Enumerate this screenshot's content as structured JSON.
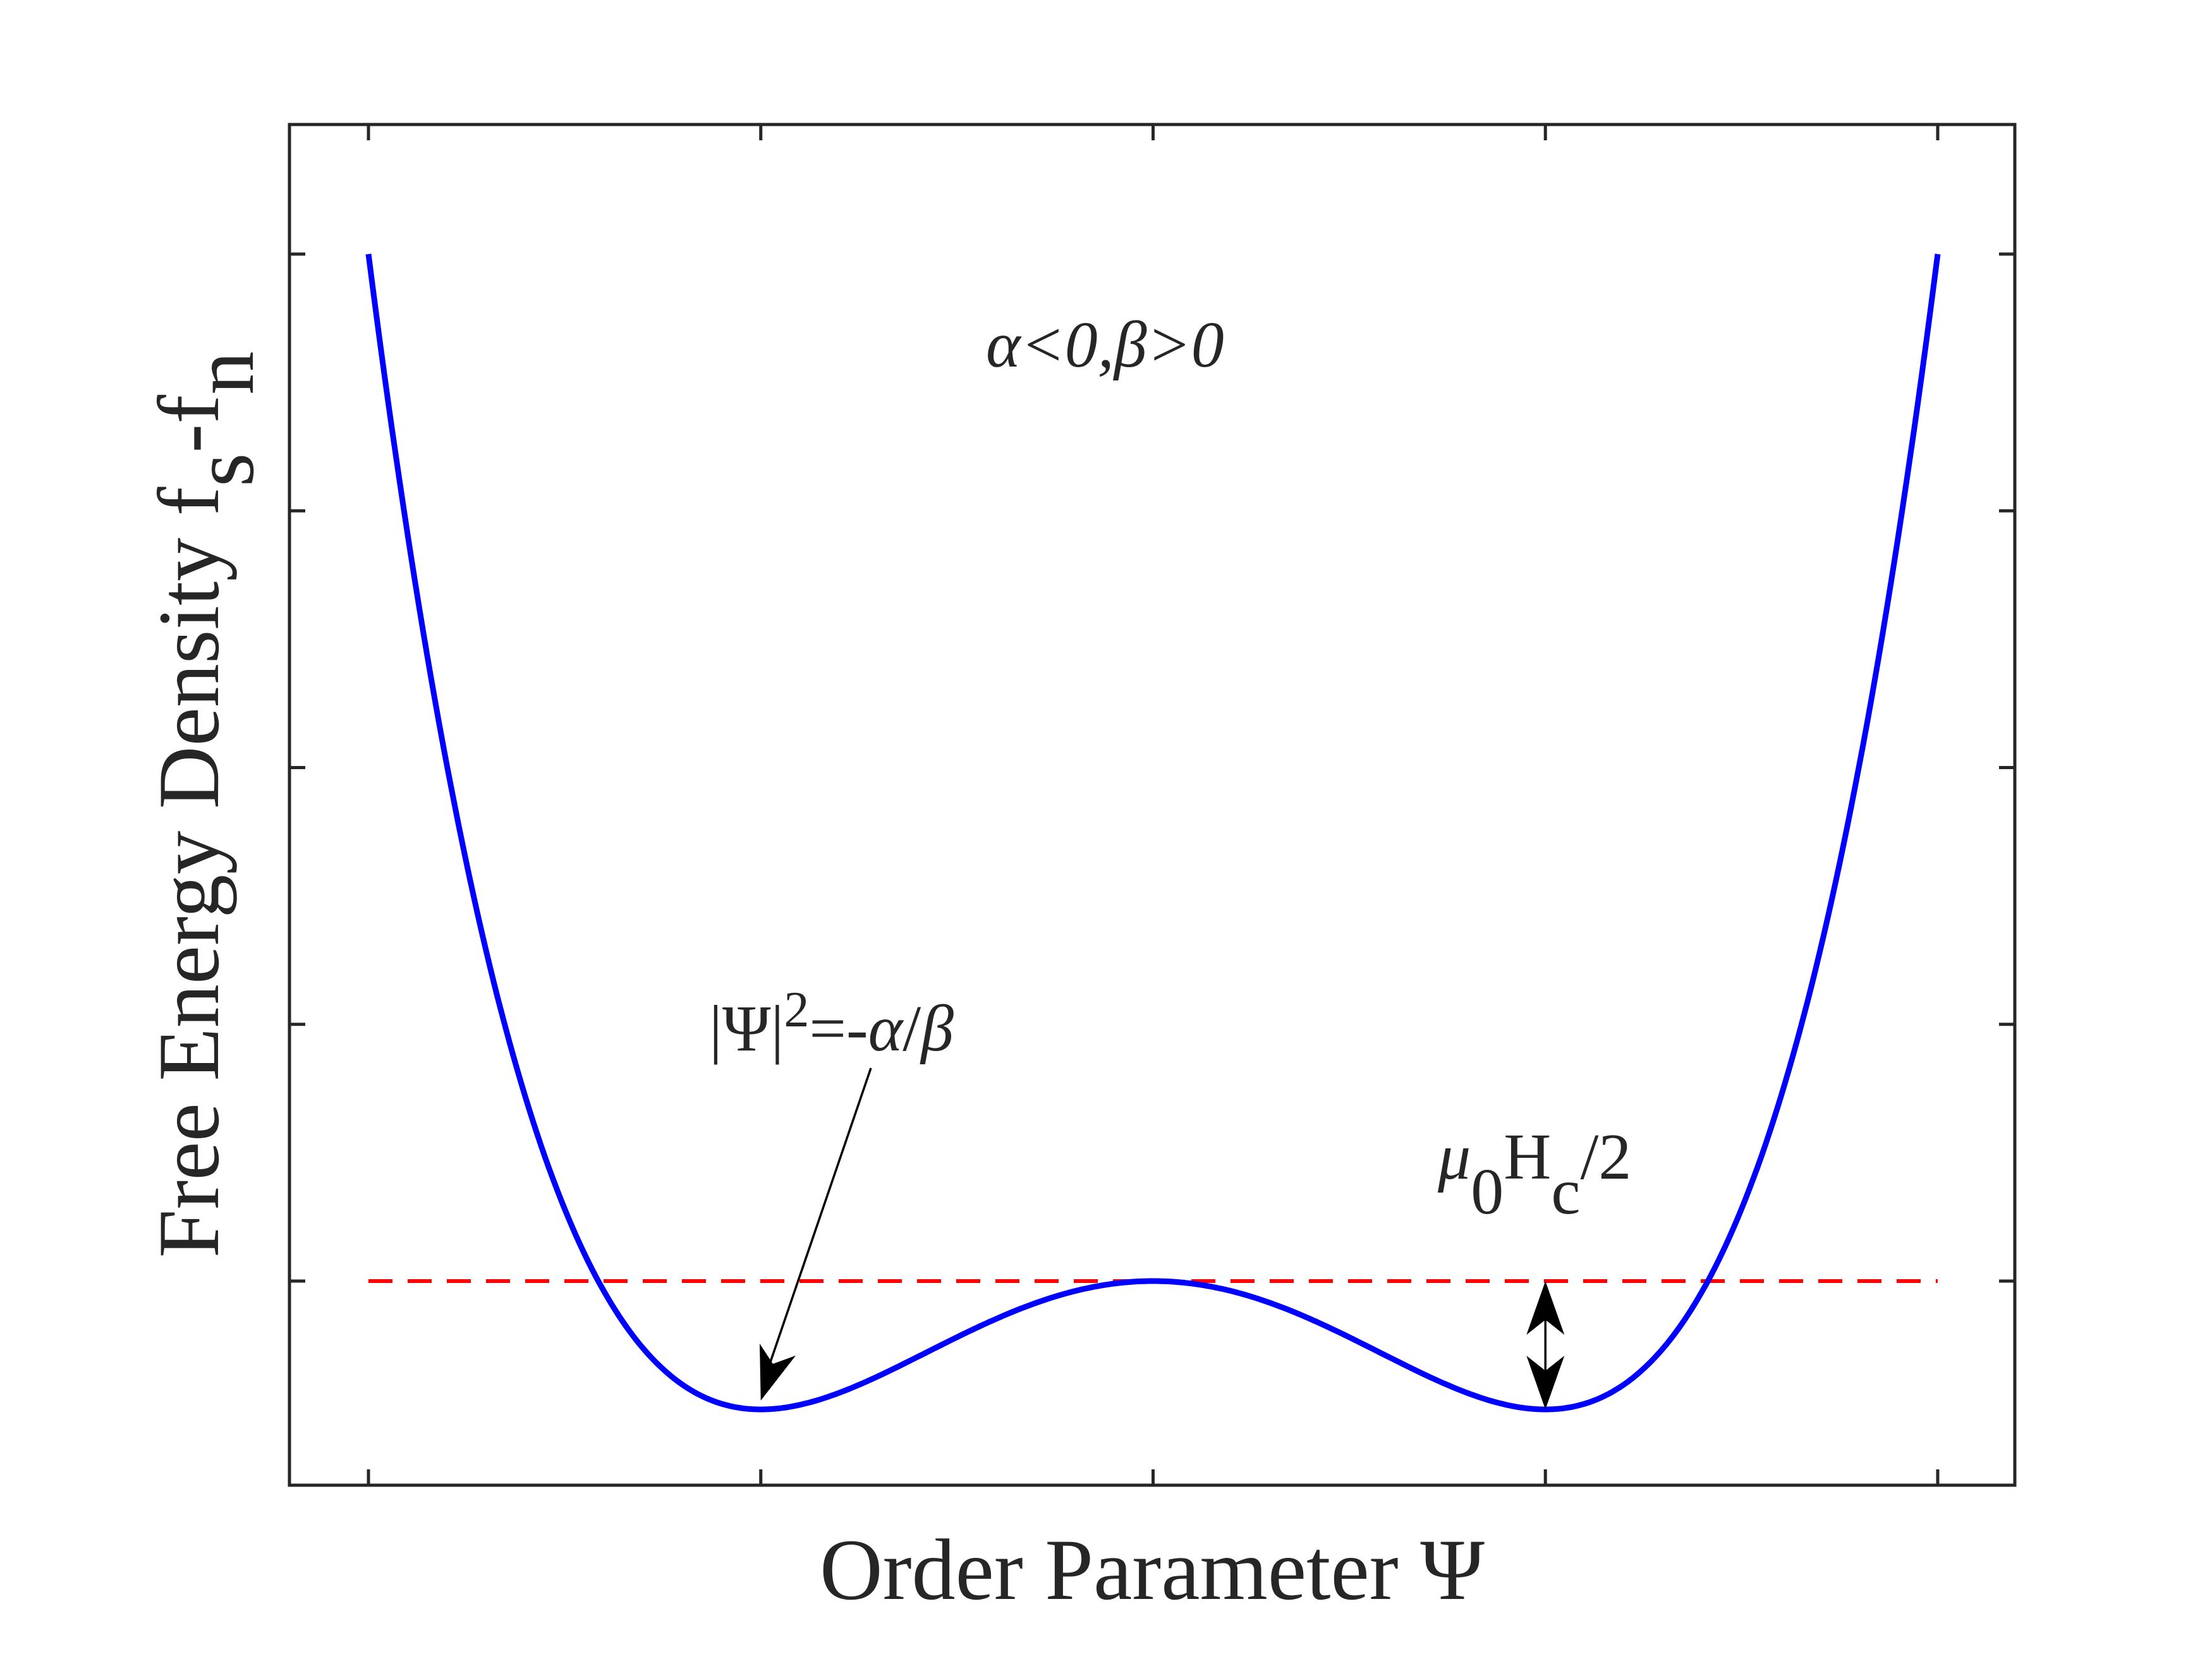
{
  "chart_data": {
    "type": "line",
    "title": "",
    "xlabel": "Order Parameter Ψ",
    "ylabel": {
      "main": "Free Energy Density f",
      "sub1": "s",
      "mid": "-f",
      "sub2": "n"
    },
    "xlim": [
      -2,
      2
    ],
    "ylim": [
      -0.8,
      4.6
    ],
    "grid": false,
    "legend": "none",
    "x_ticks": [
      -2,
      -1,
      0,
      1,
      2
    ],
    "y_ticks": [
      0,
      1,
      2,
      3,
      4
    ],
    "tick_labels_shown": false,
    "series": [
      {
        "style": "solid",
        "color": "#0000ff",
        "formula": "(x^2 - 1)^2 / 2 - 0.5",
        "x": [
          -2.0,
          -1.9,
          -1.8,
          -1.7,
          -1.6,
          -1.5,
          -1.4,
          -1.3,
          -1.2,
          -1.1,
          -1.0,
          -0.9,
          -0.8,
          -0.7,
          -0.6,
          -0.5,
          -0.4,
          -0.3,
          -0.2,
          -0.1,
          0.0,
          0.1,
          0.2,
          0.3,
          0.4,
          0.5,
          0.6,
          0.7,
          0.8,
          0.9,
          1.0,
          1.1,
          1.2,
          1.3,
          1.4,
          1.5,
          1.6,
          1.7,
          1.8,
          1.9,
          2.0
        ],
        "y": [
          4.0,
          3.1,
          2.34,
          1.7,
          1.19,
          0.78,
          0.47,
          0.24,
          0.09,
          0.02,
          -0.5,
          -0.48,
          -0.44,
          -0.37,
          -0.29,
          -0.22,
          -0.15,
          -0.09,
          -0.04,
          -0.01,
          0.0,
          -0.01,
          -0.04,
          -0.09,
          -0.15,
          -0.22,
          -0.29,
          -0.37,
          -0.44,
          -0.48,
          -0.5,
          0.02,
          0.09,
          0.24,
          0.47,
          0.78,
          1.19,
          1.7,
          2.34,
          3.1,
          4.0
        ]
      },
      {
        "style": "dashed",
        "color": "#ff0000",
        "x": [
          -2,
          2
        ],
        "y": [
          0,
          0
        ]
      }
    ],
    "annotations": [
      {
        "id": "condition",
        "text": "α<0,β>0"
      },
      {
        "id": "minimum",
        "text": "|Ψ|²=-α/β",
        "pieces": [
          "|Ψ|",
          "2",
          "=-",
          "α",
          "/",
          "β"
        ],
        "arrow_to": [
          -1,
          -0.5
        ]
      },
      {
        "id": "condensation",
        "text": "μ₀H_c/2",
        "pieces": [
          "μ",
          "0",
          "H",
          "c",
          "/2"
        ],
        "arrow_between": [
          [
            1,
            0
          ],
          [
            1,
            -0.5
          ]
        ]
      }
    ],
    "colors": {
      "curve": "#0000ff",
      "reference": "#ff0000",
      "axes": "#262626",
      "arrows": "#000000"
    }
  }
}
